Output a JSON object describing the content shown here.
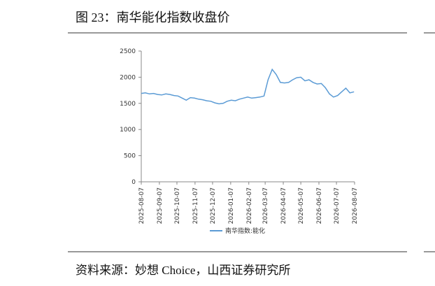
{
  "chart_data": {
    "type": "line",
    "title": "图 23：南华能化指数收盘价",
    "source": "资料来源：妙想 Choice，山西证券研究所",
    "x": [
      "2025-08-07",
      "2025-08-14",
      "2025-08-21",
      "2025-08-28",
      "2025-09-04",
      "2025-09-11",
      "2025-09-18",
      "2025-09-25",
      "2025-10-02",
      "2025-10-09",
      "2025-10-16",
      "2025-10-23",
      "2025-10-30",
      "2025-11-06",
      "2025-11-13",
      "2025-11-20",
      "2025-11-27",
      "2025-12-04",
      "2025-12-11",
      "2025-12-18",
      "2025-12-25",
      "2026-01-01",
      "2026-01-08",
      "2026-01-15",
      "2026-01-22",
      "2026-01-29",
      "2026-02-05",
      "2026-02-12",
      "2026-02-19",
      "2026-02-26",
      "2026-03-05",
      "2026-03-12",
      "2026-03-19",
      "2026-03-26",
      "2026-04-02",
      "2026-04-09",
      "2026-04-16",
      "2026-04-23",
      "2026-04-30",
      "2026-05-07",
      "2026-05-14",
      "2026-05-21",
      "2026-05-28",
      "2026-06-04",
      "2026-06-11",
      "2026-06-18",
      "2026-06-25",
      "2026-07-02",
      "2026-07-09",
      "2026-07-16",
      "2026-07-23",
      "2026-07-30",
      "2026-08-06"
    ],
    "series": [
      {
        "name": "南华指数:能化",
        "color": "#5b9bd5",
        "values": [
          1690,
          1700,
          1680,
          1690,
          1670,
          1660,
          1680,
          1670,
          1650,
          1640,
          1600,
          1560,
          1610,
          1600,
          1580,
          1570,
          1550,
          1540,
          1510,
          1490,
          1500,
          1540,
          1560,
          1550,
          1580,
          1600,
          1620,
          1600,
          1610,
          1620,
          1640,
          1950,
          2150,
          2050,
          1900,
          1890,
          1900,
          1950,
          1990,
          2000,
          1930,
          1950,
          1900,
          1870,
          1880,
          1800,
          1680,
          1620,
          1650,
          1720,
          1790,
          1700,
          1720
        ]
      }
    ],
    "xlim": [
      "2025-08-07",
      "2026-08-07"
    ],
    "xticks": [
      "2025-08-07",
      "2025-09-07",
      "2025-10-07",
      "2025-11-07",
      "2025-12-07",
      "2026-01-07",
      "2026-02-07",
      "2026-03-07",
      "2026-04-07",
      "2026-05-07",
      "2026-06-07",
      "2026-07-07",
      "2026-08-07"
    ],
    "ylim": [
      0,
      2500
    ],
    "yticks": [
      0,
      500,
      1000,
      1500,
      2000,
      2500
    ],
    "grid": false,
    "legend": "bottom"
  }
}
